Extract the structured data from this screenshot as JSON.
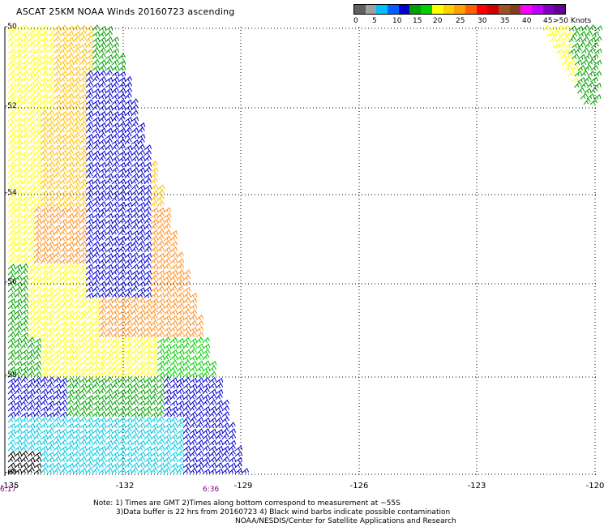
{
  "title": "ASCAT 25KM NOAA Winds 20160723 ascending",
  "colorbar": {
    "colors": [
      "#606060",
      "#a0a0a0",
      "#00c0ff",
      "#0060ff",
      "#0000d0",
      "#00a000",
      "#00d000",
      "#ffff00",
      "#ffd000",
      "#ffa000",
      "#ff6000",
      "#ff0000",
      "#d00000",
      "#a05020",
      "#804020",
      "#ff00ff",
      "#c000ff",
      "#8000c0",
      "#600090"
    ],
    "labels": [
      "0",
      "5",
      "10",
      "15",
      "20",
      "25",
      "30",
      "35",
      "40",
      "45",
      ">50 Knots"
    ]
  },
  "lat_labels": [
    "-50",
    "-52",
    "-54",
    "-56",
    "-58",
    "-60"
  ],
  "lon_labels": [
    "-135",
    "-132",
    "-129",
    "-126",
    "-123",
    "-120"
  ],
  "time_labels": [
    "6:17",
    "6:36"
  ],
  "notes": [
    "Note: 1) Times are GMT 2)Times along bottom correspond to measurement at ~55S",
    "3)Data buffer is 22 hrs from 20160723 4) Black wind barbs indicate possible contamination",
    "NOAA/NESDIS/Center for Satellite Applications and Research"
  ],
  "legend_colors": {
    "black": "#000000",
    "cyan": "#00c8e0",
    "blue": "#0000d0",
    "green": "#00a000",
    "lime": "#00d000",
    "yellow": "#ffff00",
    "gold": "#ffc000",
    "orange": "#ff9020",
    "time_purple": "#800080"
  }
}
